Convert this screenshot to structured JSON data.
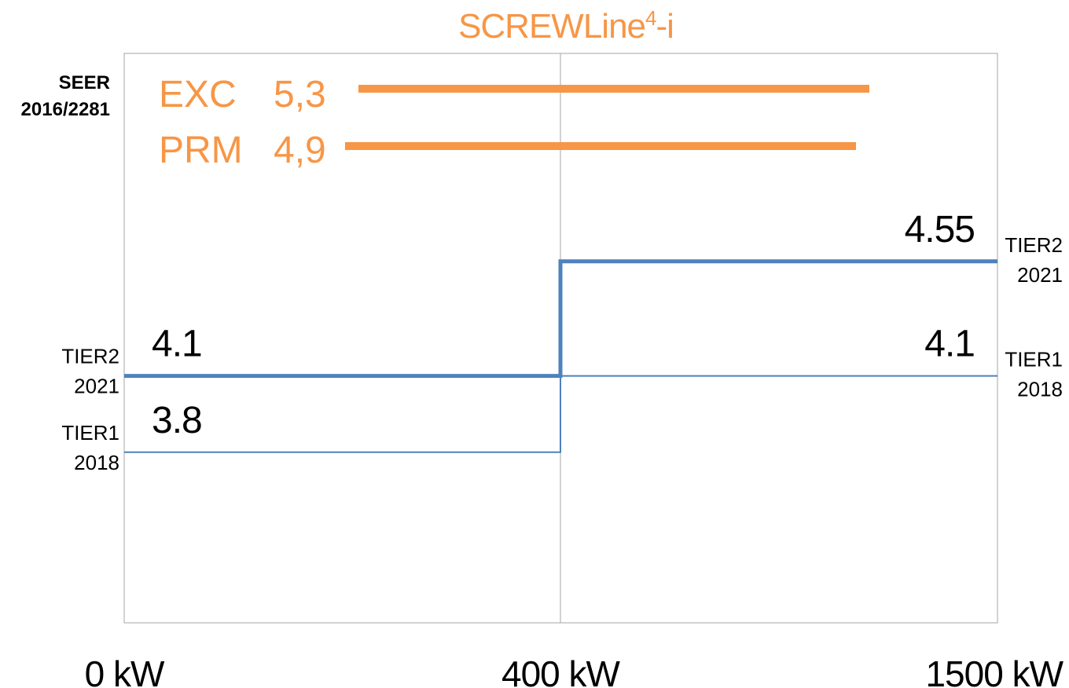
{
  "chart_data": {
    "type": "line",
    "title_main": "SCREWLine",
    "title_sup": "4",
    "title_suffix": "-i",
    "y_axis_label": [
      "SEER",
      "2016/2281"
    ],
    "x_ticks": [
      "0 kW",
      "400 kW",
      "1500 kW"
    ],
    "series": [
      {
        "label_left": [
          "TIER2",
          "2021"
        ],
        "label_right": [
          "TIER2",
          "2021"
        ],
        "segments": [
          {
            "x_from": "0 kW",
            "x_to": "400 kW",
            "y": 4.1,
            "value_label": "4.1"
          },
          {
            "x_from": "400 kW",
            "x_to": "1500 kW",
            "y": 4.55,
            "value_label": "4.55"
          }
        ],
        "color": "#4F81BD",
        "weight": "thick"
      },
      {
        "label_left": [
          "TIER1",
          "2018"
        ],
        "label_right": [
          "TIER1",
          "2018"
        ],
        "segments": [
          {
            "x_from": "0 kW",
            "x_to": "400 kW",
            "y": 3.8,
            "value_label": "3.8"
          },
          {
            "x_from": "400 kW",
            "x_to": "1500 kW",
            "y": 4.1,
            "value_label": "4.1"
          }
        ],
        "color": "#4F81BD",
        "weight": "thin"
      }
    ],
    "bands": [
      {
        "name": "EXC",
        "value": 5.3,
        "value_label": "5,3",
        "color": "#F79646"
      },
      {
        "name": "PRM",
        "value": 4.9,
        "value_label": "4,9",
        "color": "#F79646"
      }
    ],
    "colors": {
      "accent": "#F79646",
      "tier": "#4F81BD",
      "frame": "#A6A6A6"
    }
  }
}
